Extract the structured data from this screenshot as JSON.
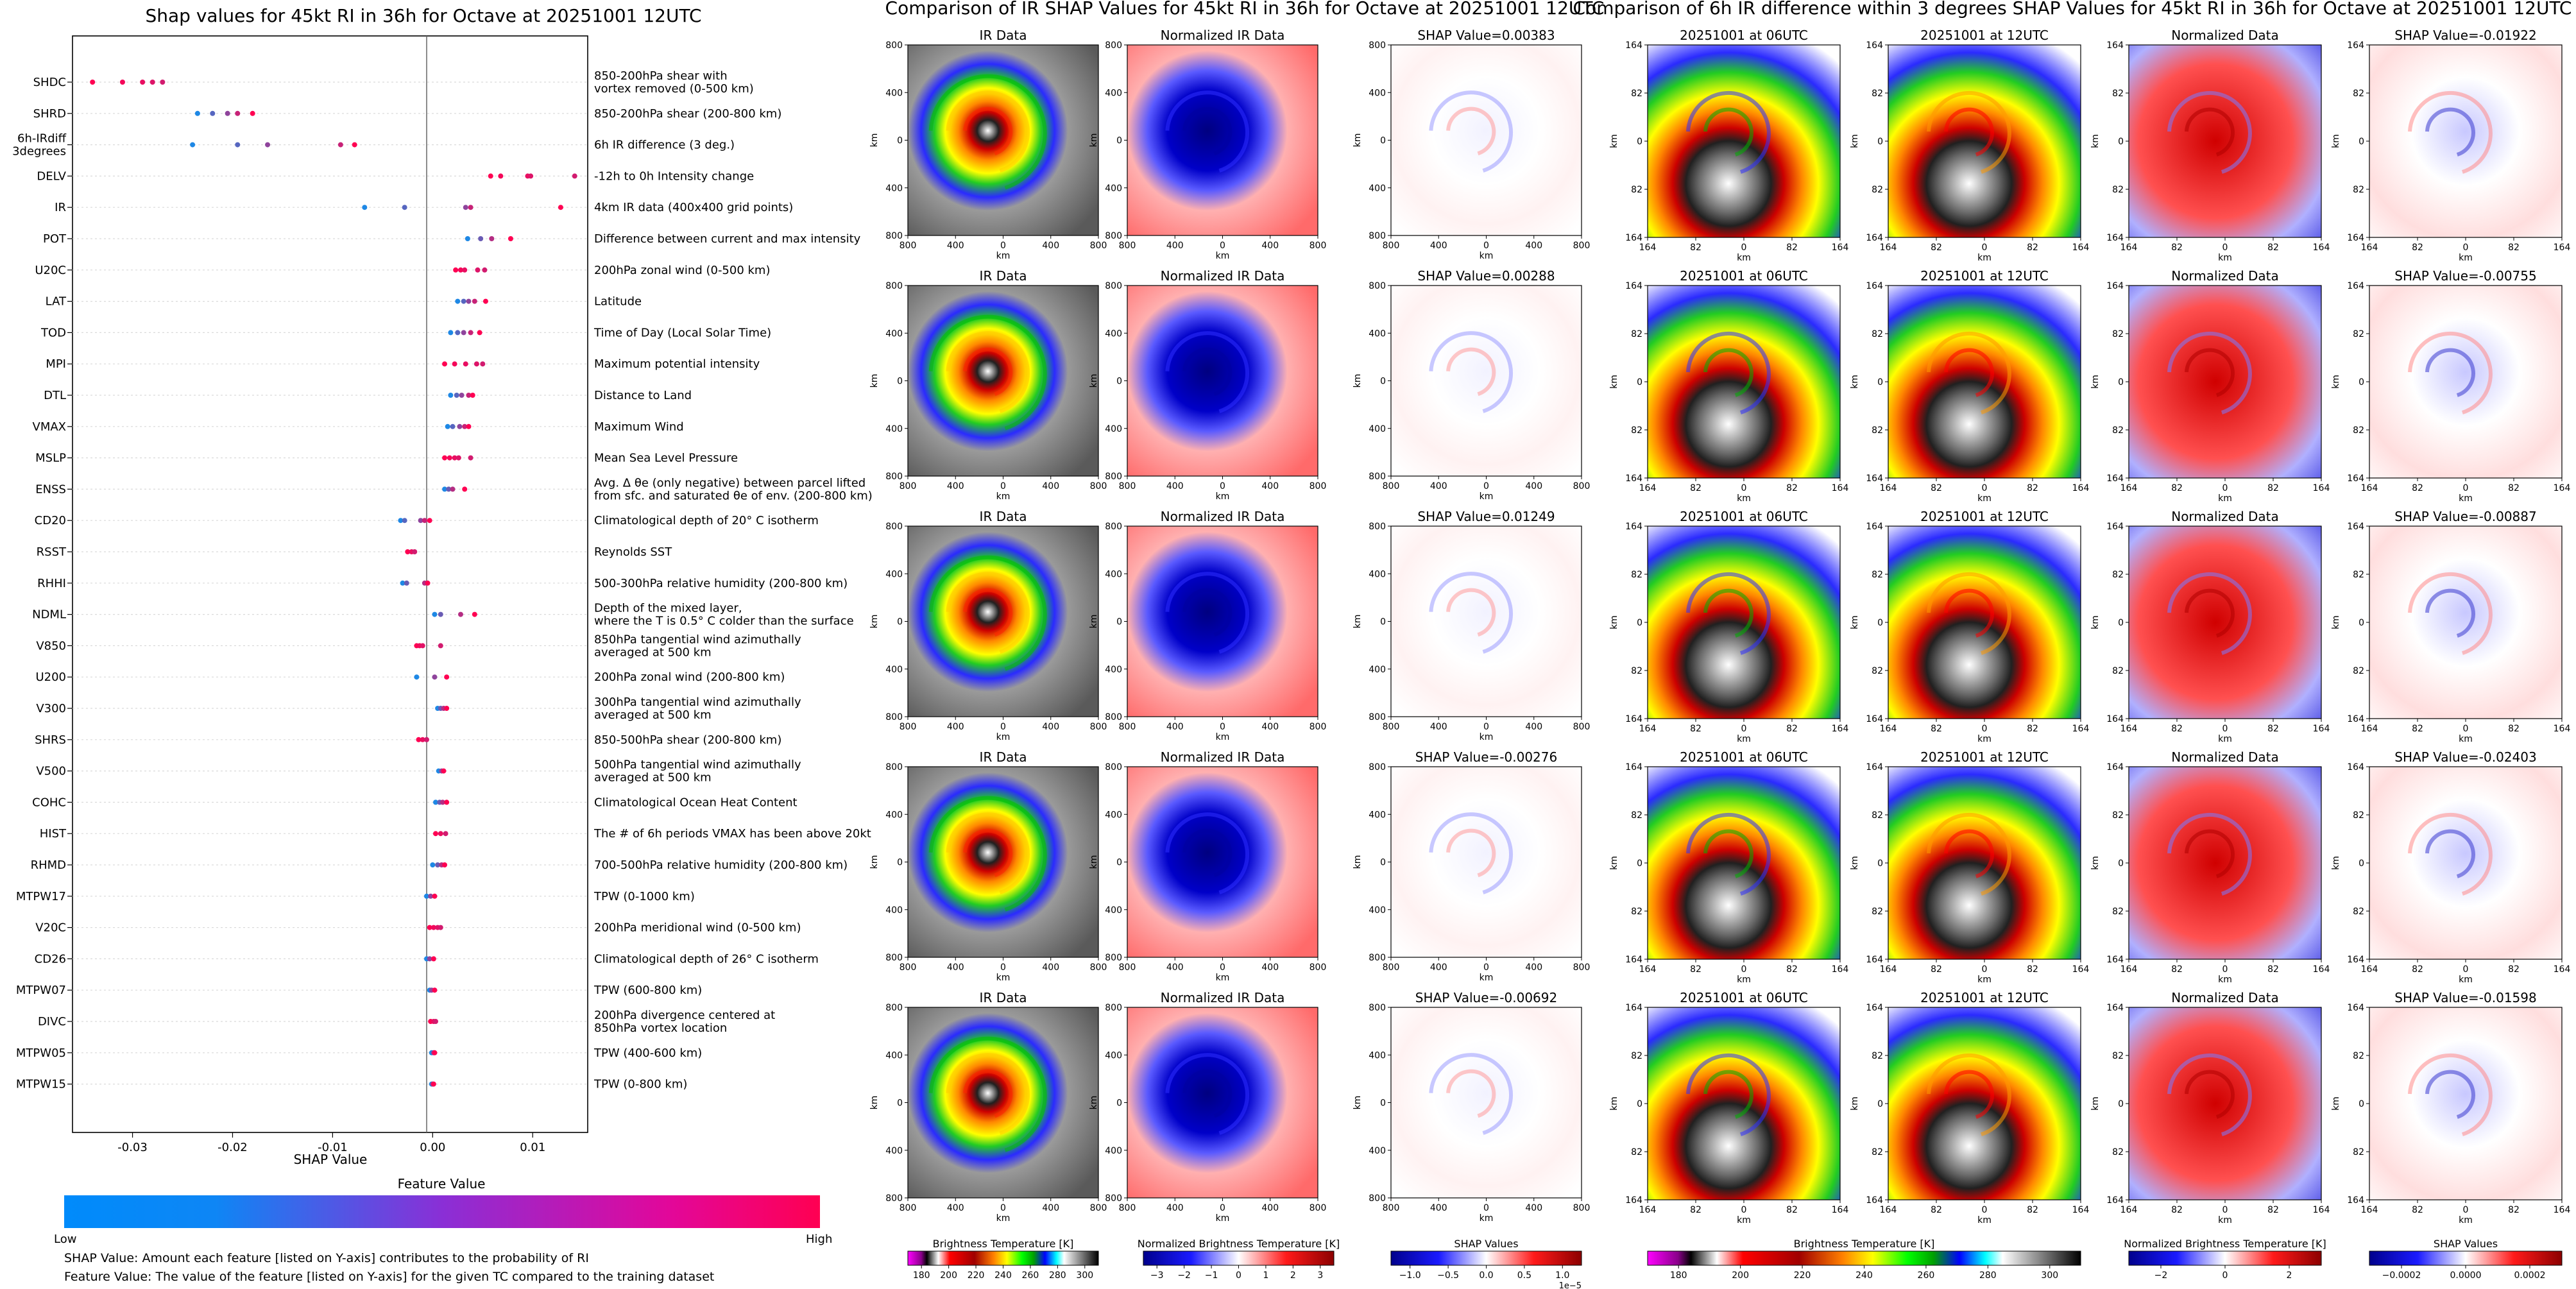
{
  "chart_data": [
    {
      "type": "scatter",
      "title": "Shap values for 45kt RI in 36h for Octave at 20251001 12UTC",
      "xlabel": "SHAP Value",
      "xlim": [
        -0.036,
        0.0155
      ],
      "xticks": [
        "-0.03",
        "-0.02",
        "-0.01",
        "0.00",
        "0.01"
      ],
      "xtick_values": [
        -0.03,
        -0.02,
        -0.01,
        0.0,
        0.01
      ],
      "grid": "horizontal dotted lines per feature",
      "features": [
        {
          "code": [
            "SHDC"
          ],
          "desc": [
            "850-200hPa shear with",
            "vortex removed (0-500 km)"
          ],
          "values": [
            -0.034,
            -0.031,
            -0.029,
            -0.028,
            -0.027
          ]
        },
        {
          "code": [
            "SHRD"
          ],
          "desc": [
            "850-200hPa shear (200-800 km)"
          ],
          "values": [
            -0.0235,
            -0.022,
            -0.0205,
            -0.0195,
            -0.018
          ]
        },
        {
          "code": [
            "6h-IRdiff",
            "3degrees"
          ],
          "desc": [
            "6h IR difference (3 deg.)"
          ],
          "values": [
            -0.024,
            -0.0195,
            -0.0165,
            -0.0092,
            -0.0078
          ]
        },
        {
          "code": [
            "DELV"
          ],
          "desc": [
            "-12h to 0h Intensity change"
          ],
          "values": [
            0.0058,
            0.0068,
            0.0095,
            0.0098,
            0.0142
          ]
        },
        {
          "code": [
            "IR"
          ],
          "desc": [
            "4km IR data (400x400 grid points)"
          ],
          "values": [
            -0.0068,
            -0.0028,
            0.0033,
            0.0038,
            0.0128
          ]
        },
        {
          "code": [
            "POT"
          ],
          "desc": [
            "Difference between current and max intensity"
          ],
          "values": [
            0.0035,
            0.0048,
            0.0059,
            0.0078
          ]
        },
        {
          "code": [
            "U20C"
          ],
          "desc": [
            "200hPa zonal wind (0-500 km)"
          ],
          "values": [
            0.0023,
            0.0028,
            0.0032,
            0.0045,
            0.0052
          ]
        },
        {
          "code": [
            "LAT"
          ],
          "desc": [
            "Latitude"
          ],
          "values": [
            0.0025,
            0.0031,
            0.0036,
            0.0042,
            0.0053
          ]
        },
        {
          "code": [
            "TOD"
          ],
          "desc": [
            "Time of Day (Local Solar Time)"
          ],
          "values": [
            0.0018,
            0.0025,
            0.0031,
            0.0038,
            0.0047
          ]
        },
        {
          "code": [
            "MPI"
          ],
          "desc": [
            "Maximum potential intensity"
          ],
          "values": [
            0.0012,
            0.0022,
            0.0033,
            0.0044,
            0.005
          ]
        },
        {
          "code": [
            "DTL"
          ],
          "desc": [
            "Distance to Land"
          ],
          "values": [
            0.0018,
            0.0024,
            0.0029,
            0.0036,
            0.004
          ]
        },
        {
          "code": [
            "VMAX"
          ],
          "desc": [
            "Maximum Wind"
          ],
          "values": [
            0.0015,
            0.002,
            0.0027,
            0.0032,
            0.0036
          ]
        },
        {
          "code": [
            "MSLP"
          ],
          "desc": [
            "Mean Sea Level Pressure"
          ],
          "values": [
            0.0012,
            0.0017,
            0.0022,
            0.0026,
            0.0038
          ]
        },
        {
          "code": [
            "ENSS"
          ],
          "desc": [
            "Avg. Δ θe (only negative) between parcel lifted",
            "from sfc. and saturated θe of env. (200-800 km)"
          ],
          "values": [
            0.0012,
            0.0016,
            0.002,
            0.0032
          ]
        },
        {
          "code": [
            "CD20"
          ],
          "desc": [
            "Climatological depth of 20° C isotherm"
          ],
          "values": [
            -0.0032,
            -0.0028,
            -0.0012,
            -0.0008,
            -0.0003
          ]
        },
        {
          "code": [
            "RSST"
          ],
          "desc": [
            "Reynolds SST"
          ],
          "values": [
            -0.0025,
            -0.0021,
            -0.0018
          ]
        },
        {
          "code": [
            "RHHI"
          ],
          "desc": [
            "500-300hPa relative humidity (200-800 km)"
          ],
          "values": [
            -0.003,
            -0.0026,
            -0.0008,
            -0.0005
          ]
        },
        {
          "code": [
            "NDML"
          ],
          "desc": [
            "Depth of the mixed layer,",
            "where the T is 0.5° C colder than the surface"
          ],
          "values": [
            0.0002,
            0.0008,
            0.0028,
            0.0042
          ]
        },
        {
          "code": [
            "V850"
          ],
          "desc": [
            "850hPa tangential wind azimuthally",
            "averaged at 500 km"
          ],
          "values": [
            -0.0016,
            -0.0013,
            -0.001,
            0.0008
          ]
        },
        {
          "code": [
            "U200"
          ],
          "desc": [
            "200hPa zonal wind (200-800 km)"
          ],
          "values": [
            -0.0016,
            0.0002,
            0.0014
          ]
        },
        {
          "code": [
            "V300"
          ],
          "desc": [
            "300hPa tangential wind azimuthally",
            "averaged at 500 km"
          ],
          "values": [
            0.0005,
            0.0008,
            0.0011,
            0.0014
          ]
        },
        {
          "code": [
            "SHRS"
          ],
          "desc": [
            "850-500hPa shear (200-800 km)"
          ],
          "values": [
            -0.0014,
            -0.001,
            -0.0006
          ]
        },
        {
          "code": [
            "V500"
          ],
          "desc": [
            "500hPa tangential wind azimuthally",
            "averaged at 500 km"
          ],
          "values": [
            0.0006,
            0.0009,
            0.0011
          ]
        },
        {
          "code": [
            "COHC"
          ],
          "desc": [
            "Climatological Ocean Heat Content"
          ],
          "values": [
            0.0003,
            0.0007,
            0.001,
            0.0014
          ]
        },
        {
          "code": [
            "HIST"
          ],
          "desc": [
            "The # of 6h periods VMAX has been above 20kt"
          ],
          "values": [
            0.0003,
            0.0008,
            0.0013
          ]
        },
        {
          "code": [
            "RHMD"
          ],
          "desc": [
            "700-500hPa relative humidity (200-800 km)"
          ],
          "values": [
            0.0,
            0.0005,
            0.0009,
            0.0012
          ]
        },
        {
          "code": [
            "MTPW17"
          ],
          "desc": [
            "TPW (0-1000 km)"
          ],
          "values": [
            -0.0006,
            -0.0002,
            0.0002
          ]
        },
        {
          "code": [
            "V20C"
          ],
          "desc": [
            "200hPa meridional wind (0-500 km)"
          ],
          "values": [
            -0.0003,
            0.0001,
            0.0005,
            0.0008
          ]
        },
        {
          "code": [
            "CD26"
          ],
          "desc": [
            "Climatological depth of 26° C isotherm"
          ],
          "values": [
            -0.0006,
            -0.0003,
            0.0001
          ]
        },
        {
          "code": [
            "MTPW07"
          ],
          "desc": [
            "TPW (600-800 km)"
          ],
          "values": [
            -0.0003,
            -0.0001,
            0.0002
          ]
        },
        {
          "code": [
            "DIVC"
          ],
          "desc": [
            "200hPa divergence centered at",
            "850hPa vortex location"
          ],
          "values": [
            -0.0002,
            0.0001,
            0.0003
          ]
        },
        {
          "code": [
            "MTPW05"
          ],
          "desc": [
            "TPW (400-600 km)"
          ],
          "values": [
            -0.0001,
            0.0001,
            0.0002
          ]
        },
        {
          "code": [
            "MTPW15"
          ],
          "desc": [
            "TPW (0-800 km)"
          ],
          "values": [
            -0.0001,
            0.0,
            0.0001
          ]
        }
      ]
    },
    {
      "type": "heatmap",
      "title": "Comparison of IR SHAP Values for 45kt RI in 36h for Octave at 20251001 12UTC",
      "panel_titles": [
        "IR Data",
        "Normalized IR Data"
      ],
      "shap_titles": [
        "SHAP Value=0.00383",
        "SHAP Value=0.00288",
        "SHAP Value=0.01249",
        "SHAP Value=-0.00276",
        "SHAP Value=-0.00692"
      ],
      "xticks": [
        "800",
        "400",
        "0",
        "400",
        "800"
      ],
      "yticks": [
        "800",
        "400",
        "0",
        "400",
        "800"
      ],
      "axis_label": "km",
      "colorbars": [
        {
          "label": "Brightness Temperature [K]",
          "ticks": [
            "180",
            "200",
            "220",
            "240",
            "260",
            "280",
            "300"
          ]
        },
        {
          "label": "Normalized Brightness Temperature [K]",
          "ticks": [
            "−3",
            "−2",
            "−1",
            "0",
            "1",
            "2",
            "3"
          ]
        },
        {
          "label": "SHAP Values",
          "ticks": [
            "−1.0",
            "−0.5",
            "0.0",
            "0.5",
            "1.0"
          ],
          "multiplier": "1e−5"
        }
      ]
    },
    {
      "type": "heatmap",
      "title": "Comparison of 6h IR difference within 3 degrees SHAP Values for 45kt RI in 36h for Octave at 20251001 12UTC",
      "panel_titles": [
        "20251001 at 06UTC",
        "20251001 at 12UTC",
        "Normalized Data"
      ],
      "shap_titles": [
        "SHAP Value=-0.01922",
        "SHAP Value=-0.00755",
        "SHAP Value=-0.00887",
        "SHAP Value=-0.02403",
        "SHAP Value=-0.01598"
      ],
      "xticks": [
        "164",
        "82",
        "0",
        "82",
        "164"
      ],
      "yticks": [
        "164",
        "82",
        "0",
        "82",
        "164"
      ],
      "axis_label": "km",
      "colorbars": [
        {
          "label": "Brightness Temperature [K]",
          "ticks": [
            "180",
            "200",
            "220",
            "240",
            "260",
            "280",
            "300"
          ]
        },
        {
          "label": "Normalized Brightness Temperature [K]",
          "ticks": [
            "−2",
            "0",
            "2"
          ]
        },
        {
          "label": "SHAP Values",
          "ticks": [
            "−0.0002",
            "0.0000",
            "0.0002"
          ]
        }
      ]
    }
  ],
  "colorbar_main": {
    "label": "Feature Value",
    "low": "Low",
    "high": "High"
  },
  "footnotes": [
    "SHAP Value: Amount each feature [listed on Y-axis] contributes to the probability of RI",
    "Feature Value: The value of the feature [listed on Y-axis] for the given TC compared to the training dataset"
  ],
  "colors": {
    "low": "#1e88e5",
    "high": "#ff0052"
  }
}
